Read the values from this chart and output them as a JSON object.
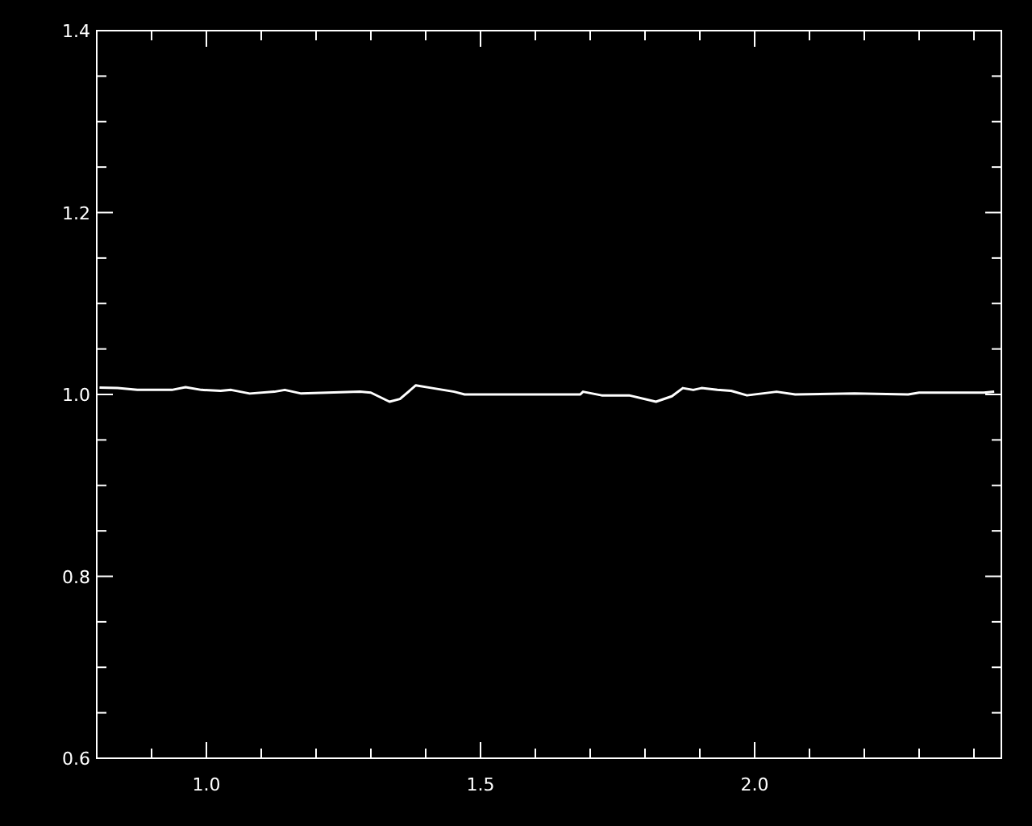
{
  "chart_data": {
    "type": "line",
    "x": [
      0.805,
      0.838,
      0.874,
      0.937,
      0.962,
      0.991,
      1.026,
      1.045,
      1.079,
      1.124,
      1.143,
      1.173,
      1.28,
      1.3,
      1.334,
      1.353,
      1.382,
      1.412,
      1.452,
      1.471,
      1.638,
      1.682,
      1.687,
      1.721,
      1.771,
      1.82,
      1.849,
      1.869,
      1.888,
      1.903,
      1.932,
      1.957,
      1.986,
      2.04,
      2.074,
      2.182,
      2.28,
      2.3,
      2.418,
      2.437
    ],
    "series": [
      {
        "color": "#ffffff",
        "values": [
          1.0076,
          1.007,
          1.005,
          1.005,
          1.008,
          1.005,
          1.004,
          1.005,
          1.001,
          1.003,
          1.005,
          1.001,
          1.003,
          1.002,
          0.992,
          0.995,
          1.01,
          1.007,
          1.003,
          1.0,
          1.0,
          1.0,
          1.003,
          0.999,
          0.999,
          0.992,
          0.998,
          1.007,
          1.005,
          1.007,
          1.005,
          1.004,
          0.999,
          1.003,
          1.0,
          1.001,
          1.0,
          1.002,
          1.002,
          1.003
        ]
      }
    ],
    "xlim": [
      0.8,
      2.45
    ],
    "ylim": [
      0.6,
      1.4
    ],
    "xticks": [
      {
        "value": 0.9,
        "label": null
      },
      {
        "value": 1.0,
        "label": "1.0"
      },
      {
        "value": 1.1,
        "label": null
      },
      {
        "value": 1.2,
        "label": null
      },
      {
        "value": 1.3,
        "label": null
      },
      {
        "value": 1.4,
        "label": null
      },
      {
        "value": 1.5,
        "label": "1.5"
      },
      {
        "value": 1.6,
        "label": null
      },
      {
        "value": 1.7,
        "label": null
      },
      {
        "value": 1.8,
        "label": null
      },
      {
        "value": 1.9,
        "label": null
      },
      {
        "value": 2.0,
        "label": "2.0"
      },
      {
        "value": 2.1,
        "label": null
      },
      {
        "value": 2.2,
        "label": null
      },
      {
        "value": 2.3,
        "label": null
      },
      {
        "value": 2.4,
        "label": null
      }
    ],
    "yticks": [
      {
        "value": 0.6,
        "label": "0.6"
      },
      {
        "value": 0.65,
        "label": null
      },
      {
        "value": 0.7,
        "label": null
      },
      {
        "value": 0.75,
        "label": null
      },
      {
        "value": 0.8,
        "label": "0.8"
      },
      {
        "value": 0.85,
        "label": null
      },
      {
        "value": 0.9,
        "label": null
      },
      {
        "value": 0.95,
        "label": null
      },
      {
        "value": 1.0,
        "label": "1.0"
      },
      {
        "value": 1.05,
        "label": null
      },
      {
        "value": 1.1,
        "label": null
      },
      {
        "value": 1.15,
        "label": null
      },
      {
        "value": 1.2,
        "label": "1.2"
      },
      {
        "value": 1.25,
        "label": null
      },
      {
        "value": 1.3,
        "label": null
      },
      {
        "value": 1.35,
        "label": null
      },
      {
        "value": 1.4,
        "label": "1.4"
      }
    ],
    "marker": "none",
    "line_style": "solid"
  }
}
